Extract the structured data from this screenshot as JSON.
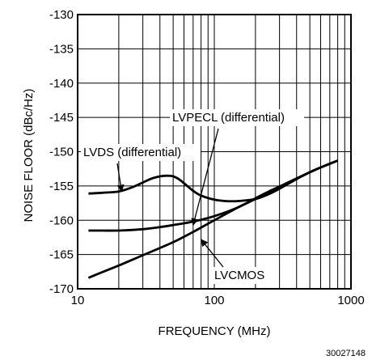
{
  "chart_data": {
    "type": "line",
    "x_scale": "log",
    "xlim": [
      10,
      1000
    ],
    "ylim": [
      -170,
      -130
    ],
    "xlabel": "FREQUENCY (MHz)",
    "ylabel": "NOISE FLOOR (dBc/Hz)",
    "x_ticks": [
      10,
      100,
      1000
    ],
    "x_tick_labels": [
      "10",
      "100",
      "1000"
    ],
    "y_ticks": [
      -130,
      -135,
      -140,
      -145,
      -150,
      -155,
      -160,
      -165,
      -170
    ],
    "y_tick_labels": [
      "-130",
      "-135",
      "-140",
      "-145",
      "-150",
      "-155",
      "-160",
      "-165",
      "-170"
    ],
    "grid": true,
    "series": [
      {
        "name": "LVDS (differential)",
        "x": [
          12,
          15,
          20,
          25,
          30,
          35,
          40,
          45,
          50,
          55,
          60,
          70,
          80,
          100,
          120,
          150,
          200,
          250,
          300,
          400,
          500,
          600,
          800
        ],
        "y": [
          -156.1,
          -156.0,
          -155.8,
          -155.2,
          -154.5,
          -153.9,
          -153.6,
          -153.5,
          -153.6,
          -154.0,
          -154.6,
          -155.7,
          -156.4,
          -157.0,
          -157.2,
          -157.2,
          -156.9,
          -156.2,
          -155.4,
          -154.0,
          -153.0,
          -152.3,
          -151.3
        ]
      },
      {
        "name": "LVPECL (differential)",
        "x": [
          12,
          15,
          20,
          30,
          40,
          50,
          70,
          100,
          150,
          200,
          250,
          300,
          400,
          500,
          600,
          800
        ],
        "y": [
          -161.5,
          -161.5,
          -161.5,
          -161.3,
          -161.0,
          -160.7,
          -160.2,
          -159.4,
          -158.1,
          -156.8,
          -155.8,
          -155.1,
          -153.9,
          -153.0,
          -152.3,
          -151.3
        ]
      },
      {
        "name": "LVCMOS",
        "x": [
          12,
          15,
          20,
          30,
          50,
          70,
          100,
          150,
          200,
          300,
          400,
          500,
          600,
          800
        ],
        "y": [
          -168.4,
          -167.6,
          -166.6,
          -165.1,
          -163.2,
          -161.7,
          -160.0,
          -158.1,
          -156.9,
          -155.1,
          -153.9,
          -153.0,
          -152.3,
          -151.3
        ]
      }
    ],
    "annotations": [
      {
        "text": "LVDS (differential)",
        "points_to": {
          "x": 21,
          "y": -155.8
        }
      },
      {
        "text": "LVPECL (differential)",
        "points_to": {
          "x": 70,
          "y": -160.7
        }
      },
      {
        "text": "LVCMOS",
        "points_to": {
          "x": 80,
          "y": -162.8
        }
      }
    ],
    "figure_id": "30027148"
  },
  "colors": {
    "line": "#000000",
    "grid": "#000000",
    "background": "#ffffff"
  }
}
